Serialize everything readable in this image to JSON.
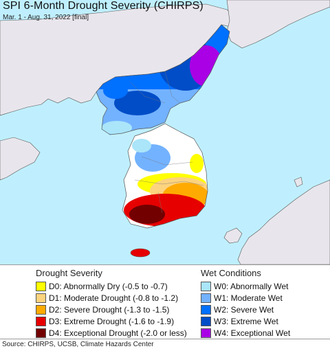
{
  "map": {
    "title": "SPI 6-Month Drought Severity (CHIRPS)",
    "subtitle": "Mar. 1 - Aug. 31, 2022 [final]"
  },
  "legend": {
    "drought": {
      "heading": "Drought Severity",
      "items": [
        {
          "label": "D0: Abnormally Dry (-0.5 to -0.7)",
          "color": "#ffff00"
        },
        {
          "label": "D1: Moderate Drought (-0.8 to -1.2)",
          "color": "#fcd37f"
        },
        {
          "label": "D2: Severe Drought (-1.3 to -1.5)",
          "color": "#ffaa00"
        },
        {
          "label": "D3: Extreme Drought (-1.6 to -1.9)",
          "color": "#e60000"
        },
        {
          "label": "D4: Exceptional Drought (-2.0 or less)",
          "color": "#730000"
        }
      ]
    },
    "wet": {
      "heading": "Wet Conditions",
      "items": [
        {
          "label": "W0: Abnormally Wet",
          "color": "#aae5fa"
        },
        {
          "label": "W1: Moderate Wet",
          "color": "#73b2ff"
        },
        {
          "label": "W2: Severe Wet",
          "color": "#0070ff"
        },
        {
          "label": "W3: Extreme Wet",
          "color": "#004dc7"
        },
        {
          "label": "W4: Exceptional Wet",
          "color": "#a900e6"
        }
      ]
    }
  },
  "colors": {
    "water": "#bfeffe",
    "land_outside": "#e8e6ec",
    "no_anomaly": "#ffffff"
  },
  "source": "Source: CHIRPS, UCSB, Climate Hazards Center"
}
